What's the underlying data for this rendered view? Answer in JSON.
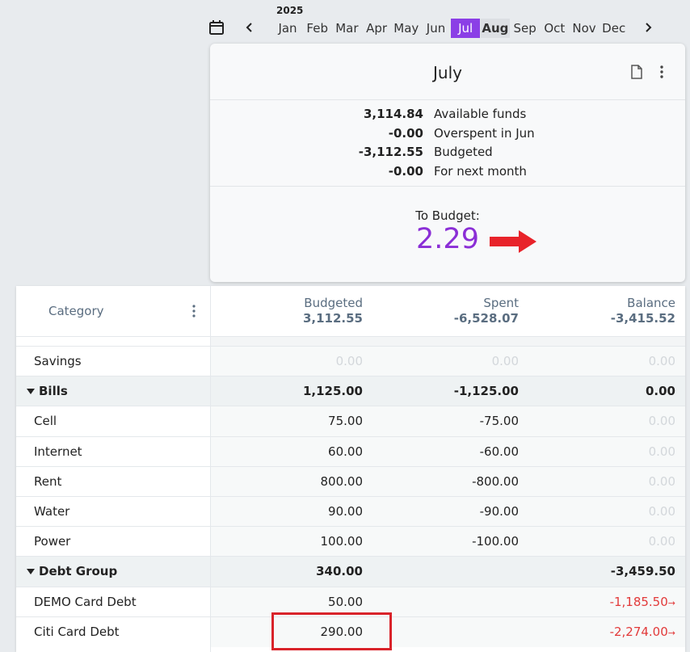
{
  "nav": {
    "year": "2025",
    "months": [
      "Jan",
      "Feb",
      "Mar",
      "Apr",
      "May",
      "Jun",
      "Jul",
      "Aug",
      "Sep",
      "Oct",
      "Nov",
      "Dec"
    ]
  },
  "summary": {
    "title": "July",
    "lines": [
      {
        "value": "3,114.84",
        "label": "Available funds"
      },
      {
        "value": "-0.00",
        "label": "Overspent in Jun"
      },
      {
        "value": "-3,112.55",
        "label": "Budgeted"
      },
      {
        "value": "-0.00",
        "label": "For next month"
      }
    ],
    "to_budget_label": "To Budget:",
    "to_budget_value": "2.29"
  },
  "table": {
    "header": {
      "category": "Category",
      "columns": [
        {
          "label": "Budgeted",
          "total": "3,112.55"
        },
        {
          "label": "Spent",
          "total": "-6,528.07"
        },
        {
          "label": "Balance",
          "total": "-3,415.52"
        }
      ]
    },
    "rows": [
      {
        "name": "Savings",
        "group": false,
        "cells": [
          "0.00",
          "0.00",
          "0.00"
        ]
      },
      {
        "name": "Bills",
        "group": true,
        "cells": [
          "1,125.00",
          "-1,125.00",
          "0.00"
        ]
      },
      {
        "name": "Cell",
        "group": false,
        "cells": [
          "75.00",
          "-75.00",
          "0.00"
        ]
      },
      {
        "name": "Internet",
        "group": false,
        "cells": [
          "60.00",
          "-60.00",
          "0.00"
        ]
      },
      {
        "name": "Rent",
        "group": false,
        "cells": [
          "800.00",
          "-800.00",
          "0.00"
        ]
      },
      {
        "name": "Water",
        "group": false,
        "cells": [
          "90.00",
          "-90.00",
          "0.00"
        ]
      },
      {
        "name": "Power",
        "group": false,
        "cells": [
          "100.00",
          "-100.00",
          "0.00"
        ]
      },
      {
        "name": "Debt Group",
        "group": true,
        "cells": [
          "340.00",
          null,
          "-3,459.50"
        ]
      },
      {
        "name": "DEMO Card Debt",
        "group": false,
        "cells": [
          "50.00",
          null,
          "-1,185.50"
        ]
      },
      {
        "name": "Citi Card Debt",
        "group": false,
        "cells": [
          "290.00",
          null,
          "-2,274.00"
        ]
      }
    ]
  }
}
